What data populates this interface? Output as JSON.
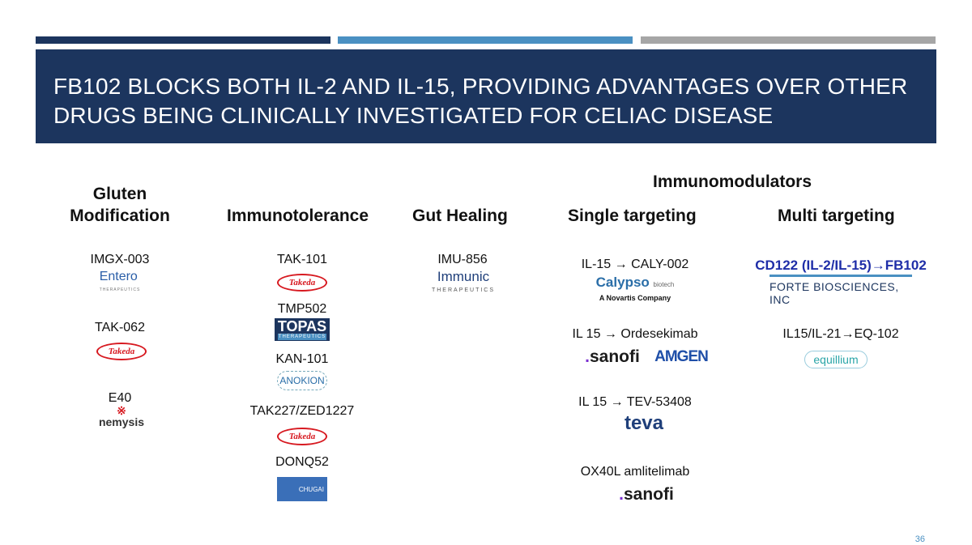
{
  "slide": {
    "title": "FB102 Blocks Both IL-2 and IL-15, Providing Advantages over Other Drugs Being Clinically Investigated for Celiac Disease",
    "page_number": "36"
  },
  "headers": {
    "group": "Immunomodulators",
    "gluten_line1": "Gluten",
    "gluten_line2": "Modification",
    "immunotolerance": "Immunotolerance",
    "gut_healing": "Gut Healing",
    "single_targeting": "Single targeting",
    "multi_targeting": "Multi targeting"
  },
  "gluten": [
    "IMGX-003",
    "TAK-062",
    "E40"
  ],
  "immunotolerance": [
    "TAK-101",
    "TMP502",
    "KAN-101",
    "TAK227/ZED1227",
    "DONQ52"
  ],
  "gut_healing": [
    "IMU-856"
  ],
  "single": [
    "IL-15 → CALY-002",
    "IL 15 → Ordesekimab",
    "IL 15 → TEV-53408",
    "OX40L amlitelimab"
  ],
  "multi": [
    "CD122 (IL-2/IL-15)→FB102",
    "IL15/IL-21→EQ-102"
  ],
  "logos": {
    "entero": "Entero",
    "entero_sub": "THERAPEUTICS",
    "takeda": "Takeda",
    "nemysis": "nemysis",
    "immunic": "Immunic",
    "immunic_sub": "THERAPEUTICS",
    "topas": "TOPAS",
    "topas_sub": "THERAPEUTICS",
    "anokion": "ANOKION",
    "chugai": "CHUGAI",
    "calypso": "Calypso",
    "calypso_biotech": "biotech",
    "calypso_sub": "A Novartis Company",
    "sanofi": "sanofi",
    "amgen": "AMGEN",
    "teva": "teva",
    "forte": "FORTE BIOSCIENCES, INC",
    "equillium": "equillium"
  }
}
